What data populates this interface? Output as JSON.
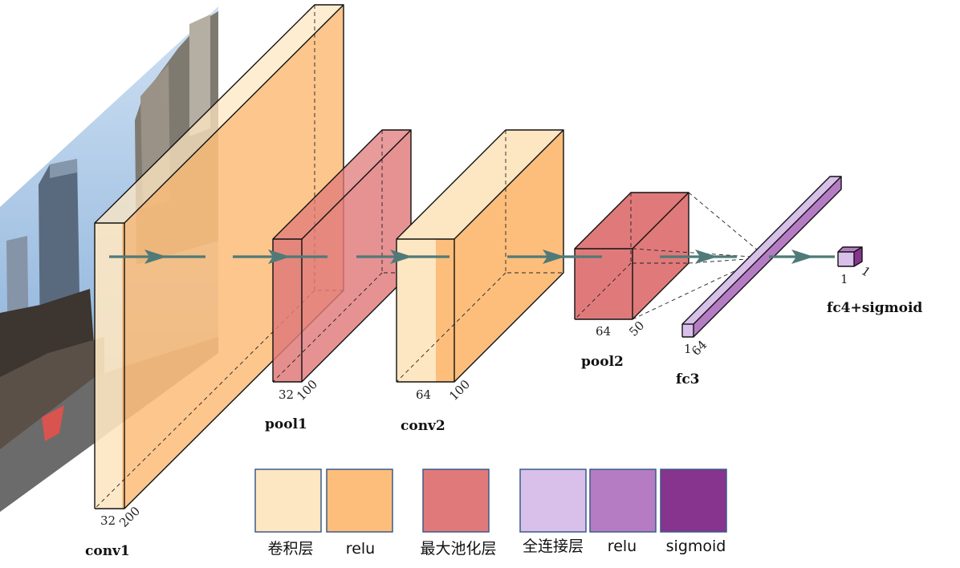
{
  "colors": {
    "conv": "#fde7c2",
    "relu": "#fdbe7c",
    "pool": "#e07a7a",
    "fc": "#d8c0ea",
    "fc_relu": "#b57cc4",
    "sigmoid": "#86348d",
    "arrow": "#4f7a78",
    "legend_border": "#3b5b8a"
  },
  "input_image": {
    "icon": "street-scene-photo"
  },
  "layers": {
    "conv1": {
      "name": "conv1",
      "channels": "32",
      "size": "200"
    },
    "pool1": {
      "name": "pool1",
      "channels": "32",
      "size": "100"
    },
    "conv2": {
      "name": "conv2",
      "channels": "64",
      "size": "100"
    },
    "pool2": {
      "name": "pool2",
      "channels": "64",
      "size": "50"
    },
    "fc3": {
      "name": "fc3",
      "width": "1",
      "units": "64"
    },
    "fc4": {
      "name": "fc4+sigmoid",
      "width": "1",
      "units": "1"
    }
  },
  "legend": [
    {
      "label": "卷积层",
      "color": "#fde7c2"
    },
    {
      "label": "relu",
      "color": "#fdbe7c"
    },
    {
      "label": "最大池化层",
      "color": "#e07a7a"
    },
    {
      "label": "全连接层",
      "color": "#d8c0ea"
    },
    {
      "label": "relu",
      "color": "#b57cc4"
    },
    {
      "label": "sigmoid",
      "color": "#86348d"
    }
  ]
}
